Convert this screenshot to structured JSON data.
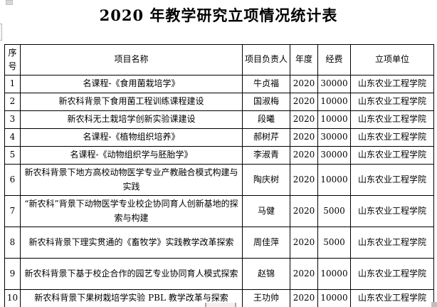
{
  "title": "2020 年教学研究立项情况统计表",
  "table": {
    "headers": [
      "序号",
      "项目名称",
      "项目负责人",
      "年度",
      "经费",
      "立项单位"
    ],
    "rows": [
      {
        "no": "1",
        "name": "名课程-《食用菌栽培学》",
        "leader": "牛贞福",
        "year": "2020",
        "fund": "30000",
        "unit": "山东农业工程学院"
      },
      {
        "no": "2",
        "name": "新农科背景下食用菌工程训练课程建设",
        "leader": "国淑梅",
        "year": "2020",
        "fund": "10000",
        "unit": "山东农业工程学院"
      },
      {
        "no": "3",
        "name": "新农科无土栽培学创新实验课建设",
        "leader": "段曦",
        "year": "2020",
        "fund": "10000",
        "unit": "山东农业工程学院"
      },
      {
        "no": "4",
        "name": "名课程-《植物组织培养》",
        "leader": "郝树芹",
        "year": "2020",
        "fund": "30000",
        "unit": "山东农业工程学院"
      },
      {
        "no": "5",
        "name": "名课程-《动物组织学与胚胎学》",
        "leader": "李淑青",
        "year": "2020",
        "fund": "30000",
        "unit": "山东农业工程学院"
      },
      {
        "no": "6",
        "name": "新农科背景下地方高校动物医学专业产教融合模式构建与实践",
        "leader": "陶庆树",
        "year": "2020",
        "fund": "10000",
        "unit": "山东农业工程学院"
      },
      {
        "no": "7",
        "name": "“新农科”背景下动物医学专业校企协同育人创新基地的探索与构建",
        "leader": "马健",
        "year": "2020",
        "fund": "5000",
        "unit": "山东农业工程学院"
      },
      {
        "no": "8",
        "name": "新农科背景下理实贯通的《畜牧学》实践教学改革探索",
        "leader": "周佳萍",
        "year": "2020",
        "fund": "5000",
        "unit": "山东农业工程学院"
      },
      {
        "no": "9",
        "name": "新农科背景下基于校企合作的园艺专业协同育人模式探索",
        "leader": "赵锦",
        "year": "2020",
        "fund": "10000",
        "unit": "山东农业工程学院"
      },
      {
        "no": "10",
        "name": "新农科背景下果树栽培学实验 PBL 教学改革与探索",
        "leader": "王功帅",
        "year": "2020",
        "fund": "10000",
        "unit": "山东农业工程学院"
      }
    ]
  },
  "colors": {
    "border": "#000000",
    "background": "#ffffff",
    "scrollbar_gray": "#a6a6a6"
  }
}
